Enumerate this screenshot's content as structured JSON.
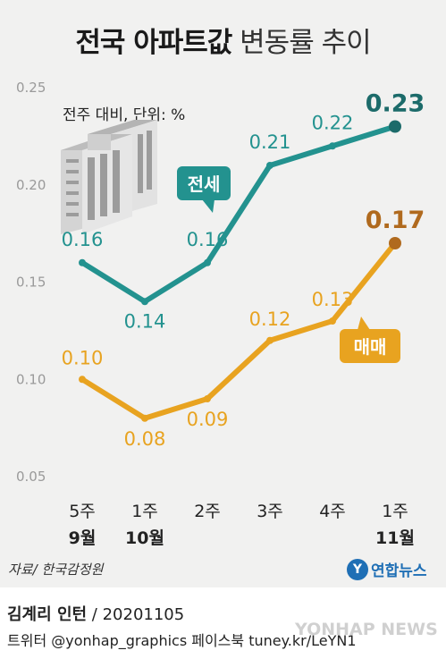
{
  "title_bold": "전국 아파트값",
  "title_light": "변동률 추이",
  "unit_note": "전주 대비, 단위: %",
  "source": "자료/ 한국감정원",
  "logo": {
    "mark": "Y",
    "text": "연합뉴스"
  },
  "footer": {
    "author_name": "김계리 인턴",
    "author_rest": " / 20201105",
    "social": "트위터 @yonhap_graphics  페이스북 tuney.kr/LeYN1",
    "watermark": "YONHAP NEWS"
  },
  "colors": {
    "jeonse": "#23928f",
    "maemae": "#e8a320",
    "jeonse_dot": "#1c6b6a",
    "maemae_dot": "#b06a1e",
    "background": "#f1f1f0"
  },
  "chart_data": {
    "type": "line",
    "categories": [
      [
        "5주",
        "9월"
      ],
      [
        "1주",
        "10월"
      ],
      [
        "2주",
        ""
      ],
      [
        "3주",
        ""
      ],
      [
        "4주",
        ""
      ],
      [
        "1주",
        "11월"
      ]
    ],
    "ylim": [
      0.05,
      0.25
    ],
    "yticks": [
      "0.05",
      "0.10",
      "0.15",
      "0.20",
      "0.25"
    ],
    "grid": false,
    "series": [
      {
        "name": "전세",
        "key": "jeonse",
        "values": [
          0.16,
          0.14,
          0.16,
          0.21,
          0.22,
          0.23
        ],
        "labels": [
          "0.16",
          "0.14",
          "0.16",
          "0.21",
          "0.22",
          "0.23"
        ]
      },
      {
        "name": "매매",
        "key": "maemae",
        "values": [
          0.1,
          0.08,
          0.09,
          0.12,
          0.13,
          0.17
        ],
        "labels": [
          "0.10",
          "0.08",
          "0.09",
          "0.12",
          "0.13",
          "0.17"
        ]
      }
    ]
  }
}
